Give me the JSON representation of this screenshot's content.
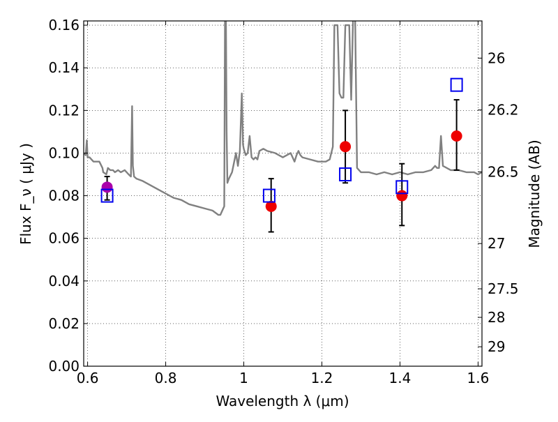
{
  "chart_data": {
    "type": "scatter",
    "xlabel": "Wavelength  λ (μm)",
    "ylabel": "Flux  F_ν  ( μJy )",
    "y2label": "Magnitude (AB)",
    "xlim": [
      0.59,
      1.61
    ],
    "ylim": [
      0.0,
      0.162
    ],
    "grid": true,
    "xticks": [
      {
        "value": 0.6,
        "label": "0.6"
      },
      {
        "value": 0.8,
        "label": "0.8"
      },
      {
        "value": 1.0,
        "label": "1"
      },
      {
        "value": 1.2,
        "label": "1.2"
      },
      {
        "value": 1.4,
        "label": "1.4"
      },
      {
        "value": 1.6,
        "label": "1.6"
      }
    ],
    "yticks": [
      {
        "value": 0.0,
        "label": "0.00"
      },
      {
        "value": 0.02,
        "label": "0.02"
      },
      {
        "value": 0.04,
        "label": "0.04"
      },
      {
        "value": 0.06,
        "label": "0.06"
      },
      {
        "value": 0.08,
        "label": "0.08"
      },
      {
        "value": 0.1,
        "label": "0.10"
      },
      {
        "value": 0.12,
        "label": "0.12"
      },
      {
        "value": 0.14,
        "label": "0.14"
      },
      {
        "value": 0.16,
        "label": "0.16"
      }
    ],
    "y2ticks": [
      {
        "value": 26,
        "label": "26"
      },
      {
        "value": 26.2,
        "label": "26.2"
      },
      {
        "value": 26.5,
        "label": "26.5"
      },
      {
        "value": 27,
        "label": "27"
      },
      {
        "value": 27.5,
        "label": "27.5"
      },
      {
        "value": 28,
        "label": "28"
      },
      {
        "value": 29,
        "label": "29"
      }
    ],
    "series": [
      {
        "kind": "line",
        "color": "#808080",
        "x": [
          0.59,
          0.595,
          0.598,
          0.6,
          0.605,
          0.615,
          0.63,
          0.638,
          0.64,
          0.648,
          0.652,
          0.658,
          0.665,
          0.67,
          0.678,
          0.685,
          0.695,
          0.705,
          0.711,
          0.714,
          0.716,
          0.719,
          0.725,
          0.74,
          0.76,
          0.78,
          0.8,
          0.82,
          0.84,
          0.86,
          0.88,
          0.9,
          0.92,
          0.935,
          0.94,
          0.945,
          0.95,
          0.952,
          0.954,
          0.956,
          0.958,
          0.962,
          0.97,
          0.98,
          0.985,
          0.99,
          0.995,
          0.998,
          1.0,
          1.005,
          1.01,
          1.015,
          1.02,
          1.025,
          1.03,
          1.035,
          1.04,
          1.05,
          1.06,
          1.08,
          1.1,
          1.12,
          1.13,
          1.135,
          1.14,
          1.145,
          1.15,
          1.17,
          1.19,
          1.21,
          1.22,
          1.228,
          1.232,
          1.236,
          1.24,
          1.245,
          1.25,
          1.255,
          1.26,
          1.265,
          1.27,
          1.275,
          1.28,
          1.285,
          1.29,
          1.3,
          1.32,
          1.34,
          1.36,
          1.38,
          1.4,
          1.42,
          1.44,
          1.46,
          1.48,
          1.49,
          1.495,
          1.5,
          1.505,
          1.51,
          1.53,
          1.55,
          1.57,
          1.59,
          1.6,
          1.61
        ],
        "y": [
          0.1,
          0.099,
          0.106,
          0.098,
          0.098,
          0.096,
          0.096,
          0.093,
          0.091,
          0.09,
          0.093,
          0.092,
          0.092,
          0.091,
          0.092,
          0.091,
          0.092,
          0.09,
          0.089,
          0.122,
          0.094,
          0.089,
          0.088,
          0.087,
          0.085,
          0.083,
          0.081,
          0.079,
          0.078,
          0.076,
          0.075,
          0.074,
          0.073,
          0.071,
          0.071,
          0.073,
          0.075,
          0.165,
          0.17,
          0.11,
          0.086,
          0.088,
          0.091,
          0.1,
          0.094,
          0.101,
          0.128,
          0.104,
          0.102,
          0.099,
          0.1,
          0.108,
          0.098,
          0.097,
          0.098,
          0.097,
          0.101,
          0.102,
          0.101,
          0.1,
          0.098,
          0.1,
          0.096,
          0.099,
          0.101,
          0.099,
          0.098,
          0.097,
          0.096,
          0.096,
          0.097,
          0.103,
          0.16,
          0.16,
          0.16,
          0.128,
          0.126,
          0.126,
          0.16,
          0.16,
          0.16,
          0.125,
          0.165,
          0.165,
          0.093,
          0.091,
          0.091,
          0.09,
          0.091,
          0.09,
          0.091,
          0.09,
          0.091,
          0.091,
          0.092,
          0.094,
          0.093,
          0.093,
          0.108,
          0.094,
          0.092,
          0.092,
          0.091,
          0.091,
          0.09,
          0.091
        ]
      },
      {
        "kind": "points",
        "color": "#ee0000",
        "marker": "circle",
        "points": [
          {
            "x": 1.07,
            "y": 0.075,
            "yerr_low": 0.063,
            "yerr_high": 0.088
          },
          {
            "x": 1.26,
            "y": 0.103,
            "yerr_low": 0.086,
            "yerr_high": 0.12
          },
          {
            "x": 1.405,
            "y": 0.08,
            "yerr_low": 0.066,
            "yerr_high": 0.095
          },
          {
            "x": 1.545,
            "y": 0.108,
            "yerr_low": 0.092,
            "yerr_high": 0.125
          }
        ]
      },
      {
        "kind": "points",
        "color": "#aa00aa",
        "marker": "circle",
        "points": [
          {
            "x": 0.65,
            "y": 0.084,
            "yerr_low": 0.078,
            "yerr_high": 0.089
          }
        ]
      },
      {
        "kind": "points",
        "color": "#0000ee",
        "marker": "open-square",
        "points": [
          {
            "x": 0.65,
            "y": 0.08
          },
          {
            "x": 1.065,
            "y": 0.08
          },
          {
            "x": 1.26,
            "y": 0.09
          },
          {
            "x": 1.405,
            "y": 0.084
          },
          {
            "x": 1.545,
            "y": 0.132
          }
        ]
      }
    ]
  }
}
